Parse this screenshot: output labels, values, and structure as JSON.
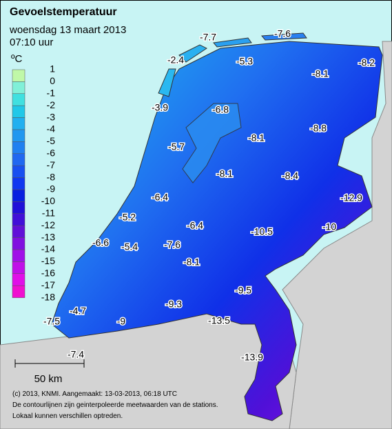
{
  "header": {
    "title": "Gevoelstemperatuur",
    "date": "woensdag 13 maart 2013",
    "time": "07:10 uur"
  },
  "legend": {
    "unit": "ºC",
    "labels": [
      1,
      0,
      -1,
      -2,
      -3,
      -4,
      -5,
      -6,
      -7,
      -8,
      -9,
      -10,
      -11,
      -12,
      -13,
      -14,
      -15,
      -16,
      -17,
      -18
    ],
    "colors": [
      "#c0f8a8",
      "#80f0d8",
      "#40e0e0",
      "#20c8e8",
      "#20b0f0",
      "#2098f0",
      "#2080f0",
      "#2068f0",
      "#1850f0",
      "#1038f0",
      "#0820e0",
      "#2010d8",
      "#4010d8",
      "#6010d8",
      "#8010e0",
      "#a010e8",
      "#c010e8",
      "#e010e8",
      "#f010d0"
    ]
  },
  "stations": [
    -7.7,
    -7.6,
    -2.4,
    -5.3,
    -8.1,
    -8.2,
    -3.9,
    -6.8,
    -8.1,
    -8.8,
    -5.7,
    -8.1,
    -8.4,
    -12.9,
    -6.4,
    -5.2,
    -6.4,
    -10.5,
    -10.0,
    -6.6,
    -5.4,
    -7.6,
    -8.1,
    -9.5,
    -9.3,
    -4.7,
    -7.5,
    -9.0,
    -13.5,
    -7.4,
    -13.9
  ],
  "scale": "50 km",
  "footer": [
    "(c) 2013, KNMI. Aangemaakt: 13-03-2013, 06:18 UTC",
    "De contourlijnen zijn geinterpoleerde meetwaarden van de stations.",
    "Lokaal kunnen verschillen optreden."
  ]
}
